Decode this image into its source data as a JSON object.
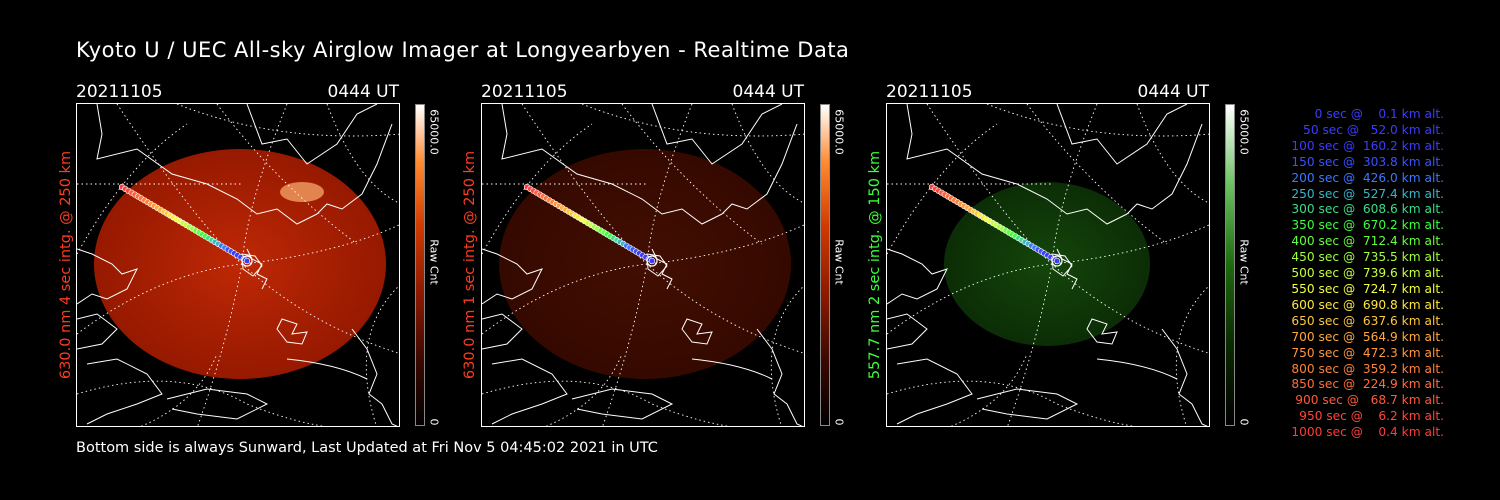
{
  "title": "Kyoto U / UEC All-sky Airglow Imager at Longyearbyen - Realtime Data",
  "footer": "Bottom side is always Sunward, Last Updated at Fri Nov  5 04:45:02 2021 in UTC",
  "panels": [
    {
      "date": "20211105",
      "time": "0444 UT",
      "label": "630.0 nm 4 sec intg. @ 250 km",
      "label_color": "#ff3c1e",
      "cbar_max": "65000.0",
      "cbar_unit": "Raw Cnt",
      "cbar_min": "0",
      "scheme": "red",
      "brightness": 1.0
    },
    {
      "date": "20211105",
      "time": "0444 UT",
      "label": "630.0 nm 1 sec intg. @ 250 km",
      "label_color": "#ff3c1e",
      "cbar_max": "65000.0",
      "cbar_unit": "Raw Cnt",
      "cbar_min": "0",
      "scheme": "red",
      "brightness": 0.35
    },
    {
      "date": "20211105",
      "time": "0444 UT",
      "label": "557.7 nm 2 sec intg. @ 150 km",
      "label_color": "#3cff3c",
      "cbar_max": "65000.0",
      "cbar_unit": "Raw Cnt",
      "cbar_min": "0",
      "scheme": "green",
      "brightness": 0.3
    }
  ],
  "legend": [
    {
      "text": "   0 sec @    0.1 km alt.",
      "color": "#3c3cff"
    },
    {
      "text": "  50 sec @   52.0 km alt.",
      "color": "#3c3cff"
    },
    {
      "text": " 100 sec @  160.2 km alt.",
      "color": "#3c3cff"
    },
    {
      "text": " 150 sec @  303.8 km alt.",
      "color": "#3c50ff"
    },
    {
      "text": " 200 sec @  426.0 km alt.",
      "color": "#3c78ff"
    },
    {
      "text": " 250 sec @  527.4 km alt.",
      "color": "#3cb4c8"
    },
    {
      "text": " 300 sec @  608.6 km alt.",
      "color": "#3cdc8c"
    },
    {
      "text": " 350 sec @  670.2 km alt.",
      "color": "#3cff3c"
    },
    {
      "text": " 400 sec @  712.4 km alt.",
      "color": "#64ff3c"
    },
    {
      "text": " 450 sec @  735.5 km alt.",
      "color": "#a0ff3c"
    },
    {
      "text": " 500 sec @  739.6 km alt.",
      "color": "#c8ff3c"
    },
    {
      "text": " 550 sec @  724.7 km alt.",
      "color": "#f0ff3c"
    },
    {
      "text": " 600 sec @  690.8 km alt.",
      "color": "#ffe63c"
    },
    {
      "text": " 650 sec @  637.6 km alt.",
      "color": "#ffc83c"
    },
    {
      "text": " 700 sec @  564.9 km alt.",
      "color": "#ffaa3c"
    },
    {
      "text": " 750 sec @  472.3 km alt.",
      "color": "#ff963c"
    },
    {
      "text": " 800 sec @  359.2 km alt.",
      "color": "#ff823c"
    },
    {
      "text": " 850 sec @  224.9 km alt.",
      "color": "#ff6e3c"
    },
    {
      "text": " 900 sec @   68.7 km alt.",
      "color": "#ff5a3c"
    },
    {
      "text": " 950 sec @    6.2 km alt.",
      "color": "#ff463c"
    },
    {
      "text": "1000 sec @    0.4 km alt.",
      "color": "#ff3c3c"
    }
  ]
}
